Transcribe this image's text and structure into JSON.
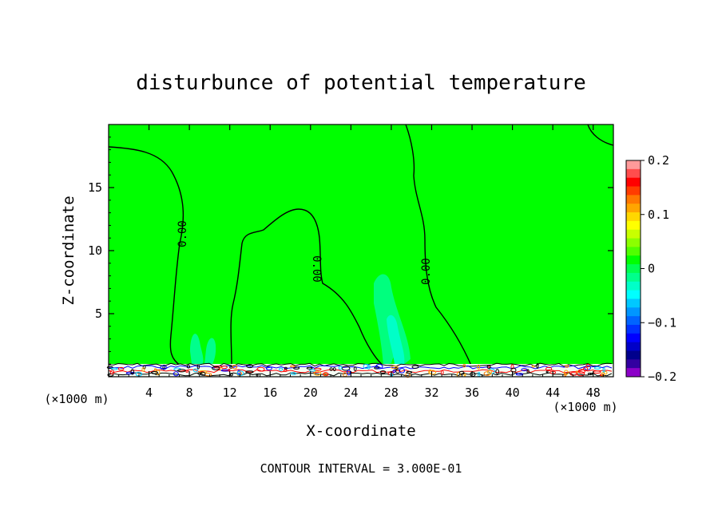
{
  "chart_data": {
    "type": "heatmap",
    "title": "disturbunce of potential temperature",
    "xlabel": "X-coordinate",
    "ylabel": "Z-coordinate",
    "x_unit_left": "(×1000 m)",
    "x_unit_right": "(×1000 m)",
    "xlim": [
      0,
      50
    ],
    "ylim": [
      0,
      20
    ],
    "xticks": [
      4,
      8,
      12,
      16,
      20,
      24,
      28,
      32,
      36,
      40,
      44,
      48
    ],
    "yticks": [
      5,
      10,
      15
    ],
    "grid": false,
    "footer": "CONTOUR INTERVAL = 3.000E-01",
    "contour_labels": [
      "0.00",
      "0.00",
      "0.00"
    ],
    "colorbar": {
      "range": [
        -0.2,
        0.2
      ],
      "ticks": [
        "0.2",
        "0.1",
        "0",
        "−0.1",
        "−0.2"
      ],
      "tick_values": [
        0.2,
        0.1,
        0,
        -0.1,
        -0.2
      ],
      "colors": [
        "#ff9a9a",
        "#ff4d4d",
        "#ff0000",
        "#ff3c00",
        "#ff7800",
        "#ffa500",
        "#ffd700",
        "#ffff00",
        "#c8ff00",
        "#8cff00",
        "#50ff00",
        "#00ff00",
        "#00ff50",
        "#00ff8c",
        "#00ffc8",
        "#00ffff",
        "#00c8ff",
        "#0096ff",
        "#0064ff",
        "#0032ff",
        "#0000ff",
        "#0000c8",
        "#00008c",
        "#3200a0",
        "#8c00c8"
      ]
    }
  }
}
